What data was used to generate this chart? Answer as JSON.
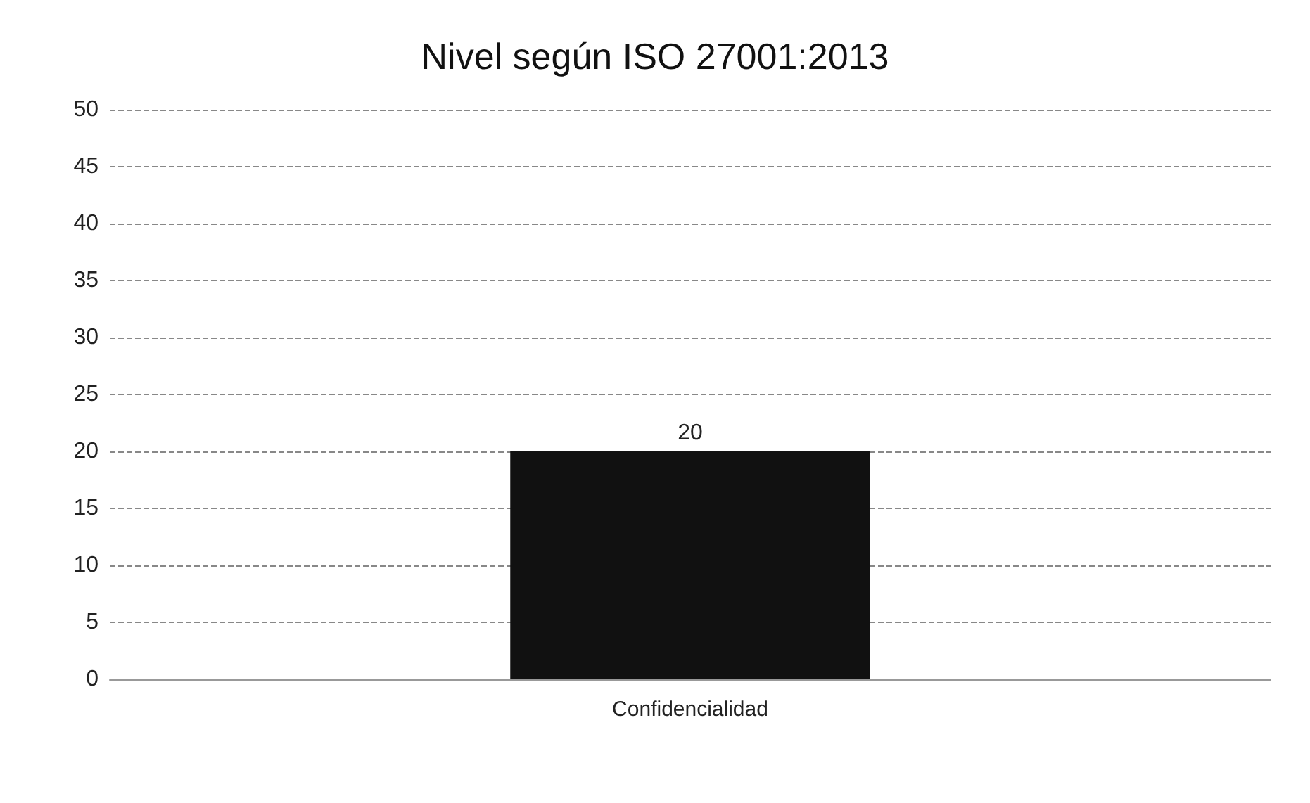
{
  "chart_data": {
    "type": "bar",
    "title": "Nivel según ISO 27001:2013",
    "categories": [
      "Confidencialidad"
    ],
    "values": [
      20
    ],
    "color": "#111111",
    "ylim": [
      0,
      50
    ],
    "yticks": [
      0,
      5,
      10,
      15,
      20,
      25,
      30,
      35,
      40,
      45,
      50
    ],
    "grid": "y",
    "data_labels": true
  }
}
